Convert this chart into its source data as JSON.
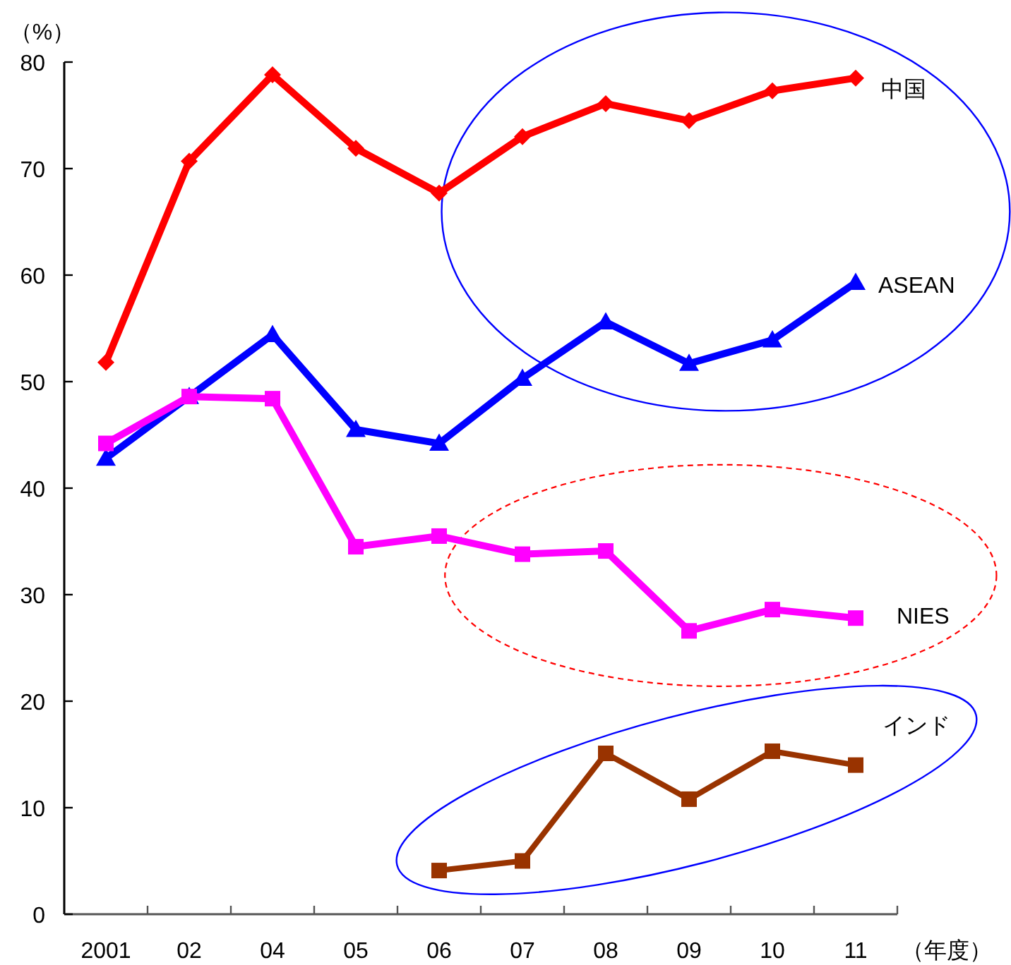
{
  "chart_data": {
    "type": "line",
    "xlabel": "（年度）",
    "ylabel": "（%）",
    "categories": [
      "2001",
      "02",
      "04",
      "05",
      "06",
      "07",
      "08",
      "09",
      "10",
      "11"
    ],
    "ylim": [
      0,
      80
    ],
    "yticks": [
      0,
      10,
      20,
      30,
      40,
      50,
      60,
      70,
      80
    ],
    "series": [
      {
        "name": "中国",
        "color": "#ff0000",
        "marker": "diamond",
        "values": [
          51.8,
          70.7,
          78.8,
          71.9,
          67.7,
          73.0,
          76.1,
          74.5,
          77.3,
          78.5
        ]
      },
      {
        "name": "ASEAN",
        "color": "#0000ff",
        "marker": "triangle",
        "values": [
          42.8,
          48.6,
          54.4,
          45.5,
          44.2,
          50.3,
          55.6,
          51.7,
          53.9,
          59.3
        ]
      },
      {
        "name": "NIES",
        "color": "#ff00ff",
        "marker": "square",
        "values": [
          44.2,
          48.6,
          48.4,
          34.5,
          35.5,
          33.8,
          34.1,
          26.6,
          28.6,
          27.8
        ]
      },
      {
        "name": "インド",
        "color": "#993300",
        "marker": "square",
        "values": [
          null,
          null,
          null,
          null,
          4.1,
          5.0,
          15.1,
          10.8,
          15.3,
          14.0
        ]
      }
    ]
  }
}
